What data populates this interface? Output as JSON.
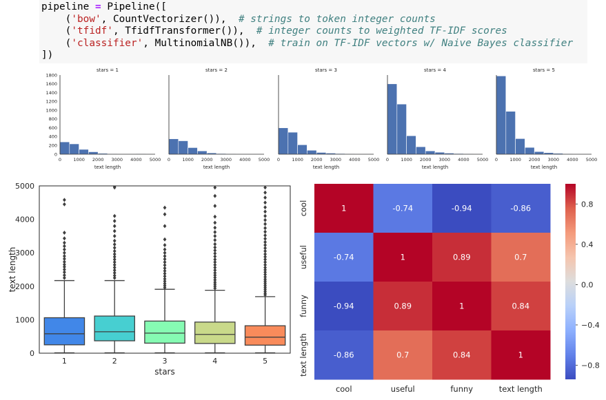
{
  "code": {
    "lines": [
      [
        {
          "t": "pipeline ",
          "c": ""
        },
        {
          "t": "=",
          "c": "op"
        },
        {
          "t": " Pipeline([",
          "c": ""
        }
      ],
      [
        {
          "t": "    (",
          "c": ""
        },
        {
          "t": "'bow'",
          "c": "s"
        },
        {
          "t": ", CountVectorizer()),  ",
          "c": ""
        },
        {
          "t": "# strings to token integer counts",
          "c": "c"
        }
      ],
      [
        {
          "t": "    (",
          "c": ""
        },
        {
          "t": "'tfidf'",
          "c": "s"
        },
        {
          "t": ", TfidfTransformer()),  ",
          "c": ""
        },
        {
          "t": "# integer counts to weighted TF-IDF scores",
          "c": "c"
        }
      ],
      [
        {
          "t": "    (",
          "c": ""
        },
        {
          "t": "'classifier'",
          "c": "s"
        },
        {
          "t": ", MultinomialNB()),  ",
          "c": ""
        },
        {
          "t": "# train on TF-IDF vectors w/ Naive Bayes classifier",
          "c": "c"
        }
      ],
      [
        {
          "t": "])",
          "c": ""
        }
      ]
    ]
  },
  "chart_data": [
    {
      "type": "bar",
      "kind": "faceted-histogram",
      "facets": [
        "stars = 1",
        "stars = 2",
        "stars = 3",
        "stars = 4",
        "stars = 5"
      ],
      "xlabel": "text length",
      "xlim": [
        0,
        5000
      ],
      "xticks": [
        0,
        1000,
        2000,
        3000,
        4000,
        5000
      ],
      "ylim": [
        0,
        1800
      ],
      "yticks": [
        0,
        200,
        400,
        600,
        800,
        1000,
        1200,
        1400,
        1600,
        1800
      ],
      "bin_width": 500,
      "bar_color": "#4c72b0",
      "series": [
        {
          "values": [
            280,
            235,
            110,
            55,
            20,
            10,
            5,
            5,
            10,
            5
          ]
        },
        {
          "values": [
            350,
            305,
            150,
            75,
            30,
            15,
            10,
            5,
            5,
            5
          ]
        },
        {
          "values": [
            600,
            500,
            215,
            90,
            40,
            25,
            15,
            10,
            5,
            5
          ]
        },
        {
          "values": [
            1600,
            1140,
            420,
            170,
            75,
            45,
            25,
            15,
            10,
            5
          ]
        },
        {
          "values": [
            1780,
            975,
            355,
            155,
            60,
            35,
            20,
            10,
            5,
            5
          ]
        }
      ]
    },
    {
      "type": "boxplot",
      "xlabel": "stars",
      "ylabel": "text length",
      "categories": [
        "1",
        "2",
        "3",
        "4",
        "5"
      ],
      "ylim": [
        0,
        5000
      ],
      "yticks": [
        0,
        1000,
        2000,
        3000,
        4000,
        5000
      ],
      "colors": [
        "#4187e8",
        "#47cfd1",
        "#86fbb3",
        "#c9d98a",
        "#f98b5b"
      ],
      "boxes": [
        {
          "q1": 250,
          "median": 580,
          "q3": 1060,
          "whislo": 10,
          "whishi": 2170,
          "fliers": [
            2250,
            2330,
            2420,
            2500,
            2580,
            2650,
            2730,
            2820,
            2900,
            3000,
            3100,
            3200,
            3300,
            3430,
            3600,
            4450,
            4580
          ]
        },
        {
          "q1": 370,
          "median": 640,
          "q3": 1110,
          "whislo": 10,
          "whishi": 2170,
          "fliers": [
            2250,
            2320,
            2400,
            2480,
            2560,
            2640,
            2720,
            2800,
            2880,
            2960,
            3050,
            3150,
            3250,
            3360,
            3500,
            3650,
            3800,
            3950,
            4100,
            4950,
            4990
          ]
        },
        {
          "q1": 300,
          "median": 600,
          "q3": 960,
          "whislo": 10,
          "whishi": 1910,
          "fliers": [
            1960,
            2020,
            2080,
            2150,
            2220,
            2300,
            2380,
            2460,
            2540,
            2630,
            2720,
            2810,
            2900,
            3000,
            3100,
            3230,
            3400,
            3800,
            4150,
            4350
          ]
        },
        {
          "q1": 290,
          "median": 560,
          "q3": 930,
          "whislo": 10,
          "whishi": 1880,
          "fliers": [
            1940,
            2000,
            2060,
            2120,
            2190,
            2260,
            2330,
            2400,
            2480,
            2560,
            2640,
            2720,
            2800,
            2890,
            2980,
            3070,
            3160,
            3260,
            3380,
            3500,
            3620,
            3750,
            3900,
            4080,
            4400,
            4700,
            4950
          ]
        },
        {
          "q1": 240,
          "median": 480,
          "q3": 820,
          "whislo": 10,
          "whishi": 1690,
          "fliers": [
            1740,
            1790,
            1850,
            1910,
            1970,
            2030,
            2090,
            2150,
            2210,
            2280,
            2350,
            2420,
            2490,
            2560,
            2640,
            2720,
            2800,
            2880,
            2960,
            3050,
            3140,
            3230,
            3320,
            3420,
            3520,
            3630,
            3740,
            3860,
            3980,
            4100,
            4230,
            4360,
            4500,
            4650,
            4800,
            4950
          ]
        }
      ]
    },
    {
      "type": "heatmap",
      "rows": [
        "cool",
        "useful",
        "funny",
        "text length"
      ],
      "cols": [
        "cool",
        "useful",
        "funny",
        "text length"
      ],
      "values": [
        [
          1,
          -0.74,
          -0.94,
          -0.86
        ],
        [
          -0.74,
          1,
          0.89,
          0.7
        ],
        [
          -0.94,
          0.89,
          1,
          0.84
        ],
        [
          -0.86,
          0.7,
          0.84,
          1
        ]
      ],
      "labels": [
        [
          "1",
          "-0.74",
          "-0.94",
          "-0.86"
        ],
        [
          "-0.74",
          "1",
          "0.89",
          "0.7"
        ],
        [
          "-0.94",
          "0.89",
          "1",
          "0.84"
        ],
        [
          "-0.86",
          "0.7",
          "0.84",
          "1"
        ]
      ],
      "colormap": "coolwarm",
      "vmin": -0.94,
      "vmax": 1,
      "colorbar_ticks": [
        0.8,
        0.4,
        0.0,
        -0.4,
        -0.8
      ],
      "colorbar_labels": [
        "0.8",
        "0.4",
        "0.0",
        "−0.4",
        "−0.8"
      ]
    }
  ]
}
